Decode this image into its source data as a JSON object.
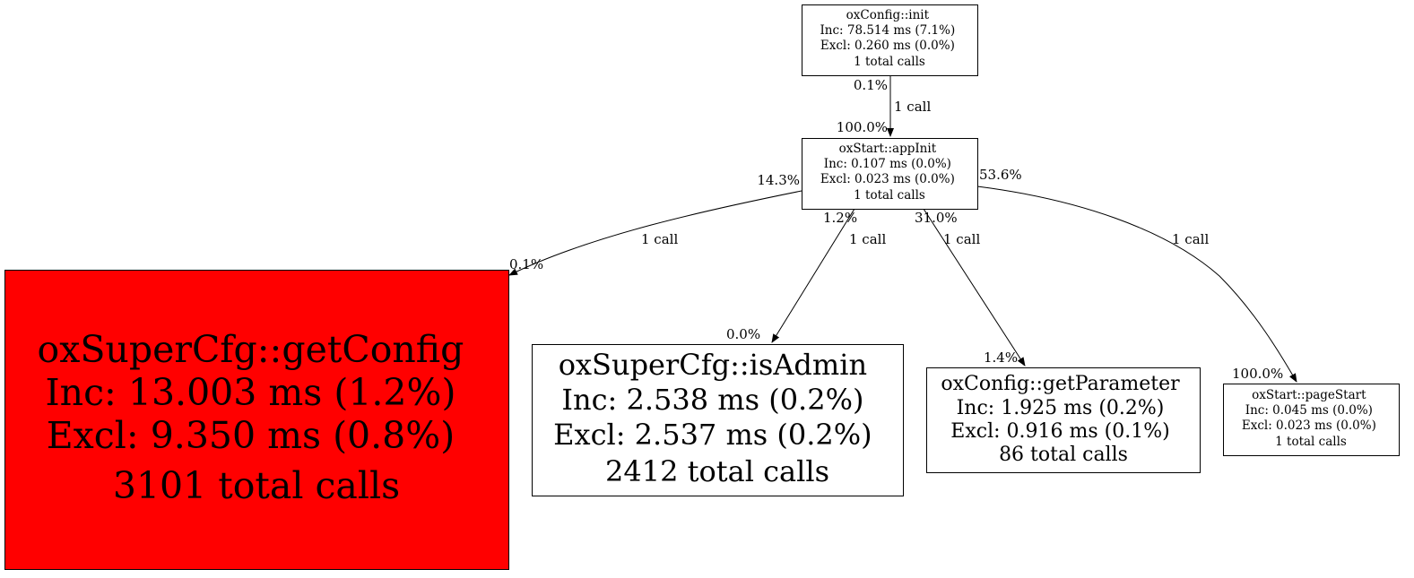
{
  "colors": {
    "hot_node": "#ff0000",
    "node": "#ffffff",
    "stroke": "#000000"
  },
  "nodes": {
    "init": {
      "lines": [
        "oxConfig::init",
        "Inc: 78.514 ms (7.1%)",
        "Excl: 0.260 ms (0.0%)",
        "1 total calls"
      ]
    },
    "appInit": {
      "lines": [
        "oxStart::appInit",
        "Inc: 0.107 ms (0.0%)",
        "Excl: 0.023 ms (0.0%)",
        "1 total calls"
      ]
    },
    "getConfig": {
      "lines": [
        "oxSuperCfg::getConfig",
        "Inc: 13.003 ms (1.2%)",
        "Excl: 9.350 ms (0.8%)",
        "3101 total calls"
      ]
    },
    "isAdmin": {
      "lines": [
        "oxSuperCfg::isAdmin",
        "Inc: 2.538 ms (0.2%)",
        "Excl: 2.537 ms (0.2%)",
        "2412 total calls"
      ]
    },
    "getParameter": {
      "lines": [
        "oxConfig::getParameter",
        "Inc: 1.925 ms (0.2%)",
        "Excl: 0.916 ms (0.1%)",
        "86 total calls"
      ]
    },
    "pageStart": {
      "lines": [
        "oxStart::pageStart",
        "Inc: 0.045 ms (0.0%)",
        "Excl: 0.023 ms (0.0%)",
        "1 total calls"
      ]
    }
  },
  "edges": [
    {
      "from": "oxConfig::init",
      "to": "oxStart::appInit",
      "tail": "0.1%",
      "label": "1 call",
      "head": "100.0%"
    },
    {
      "from": "oxStart::appInit",
      "to": "oxSuperCfg::getConfig",
      "tail": "14.3%",
      "label": "1 call",
      "head": "0.1%"
    },
    {
      "from": "oxStart::appInit",
      "to": "oxSuperCfg::isAdmin",
      "tail": "1.2%",
      "label": "1 call",
      "head": "0.0%"
    },
    {
      "from": "oxStart::appInit",
      "to": "oxConfig::getParameter",
      "tail": "31.0%",
      "label": "1 call",
      "head": "1.4%"
    },
    {
      "from": "oxStart::appInit",
      "to": "oxStart::pageStart",
      "tail": "53.6%",
      "label": "1 call",
      "head": "100.0%"
    }
  ]
}
